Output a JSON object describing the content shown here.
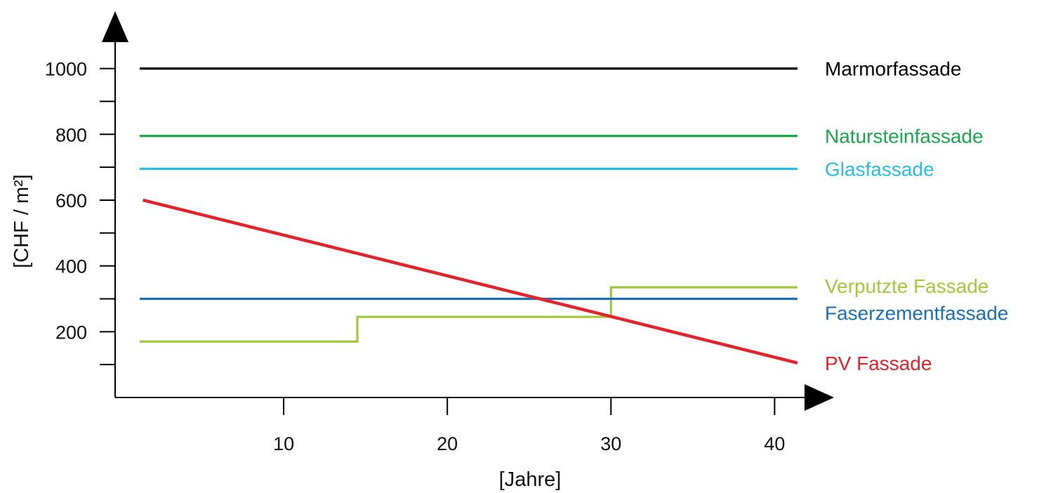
{
  "chart_data": {
    "type": "line",
    "xlabel": "[Jahre]",
    "ylabel": "[CHF / m²]",
    "xlim": [
      -0.3,
      42
    ],
    "ylim": [
      0,
      1140
    ],
    "x_ticks": [
      10,
      20,
      30,
      40
    ],
    "y_ticks": [
      200,
      400,
      600,
      800,
      1000
    ],
    "y_minor_ticks": [
      100,
      300,
      500,
      700,
      900
    ],
    "grid": false,
    "legend": "labels at right end of each line",
    "series": [
      {
        "name": "Marmorfassade",
        "color": "#000000",
        "step": false,
        "points": [
          [
            1.2,
            1000
          ],
          [
            41.4,
            1000
          ]
        ]
      },
      {
        "name": "Natursteinfassade",
        "color": "#1aa64a",
        "step": false,
        "points": [
          [
            1.2,
            795
          ],
          [
            41.4,
            795
          ]
        ]
      },
      {
        "name": "Glasfassade",
        "color": "#27bde4",
        "step": false,
        "points": [
          [
            1.2,
            695
          ],
          [
            41.4,
            695
          ]
        ]
      },
      {
        "name": "Verputzte Fassade",
        "color": "#a3c93a",
        "step": true,
        "points": [
          [
            1.2,
            170
          ],
          [
            14.5,
            170
          ],
          [
            14.5,
            245
          ],
          [
            30,
            245
          ],
          [
            30,
            335
          ],
          [
            41.4,
            335
          ]
        ]
      },
      {
        "name": "Faserzementfassade",
        "color": "#1b6fb6",
        "step": false,
        "points": [
          [
            1.2,
            300
          ],
          [
            41.4,
            300
          ]
        ]
      },
      {
        "name": "PV Fassade",
        "color": "#e3232b",
        "step": false,
        "points": [
          [
            1.4,
            600
          ],
          [
            41.4,
            105
          ]
        ]
      }
    ]
  }
}
